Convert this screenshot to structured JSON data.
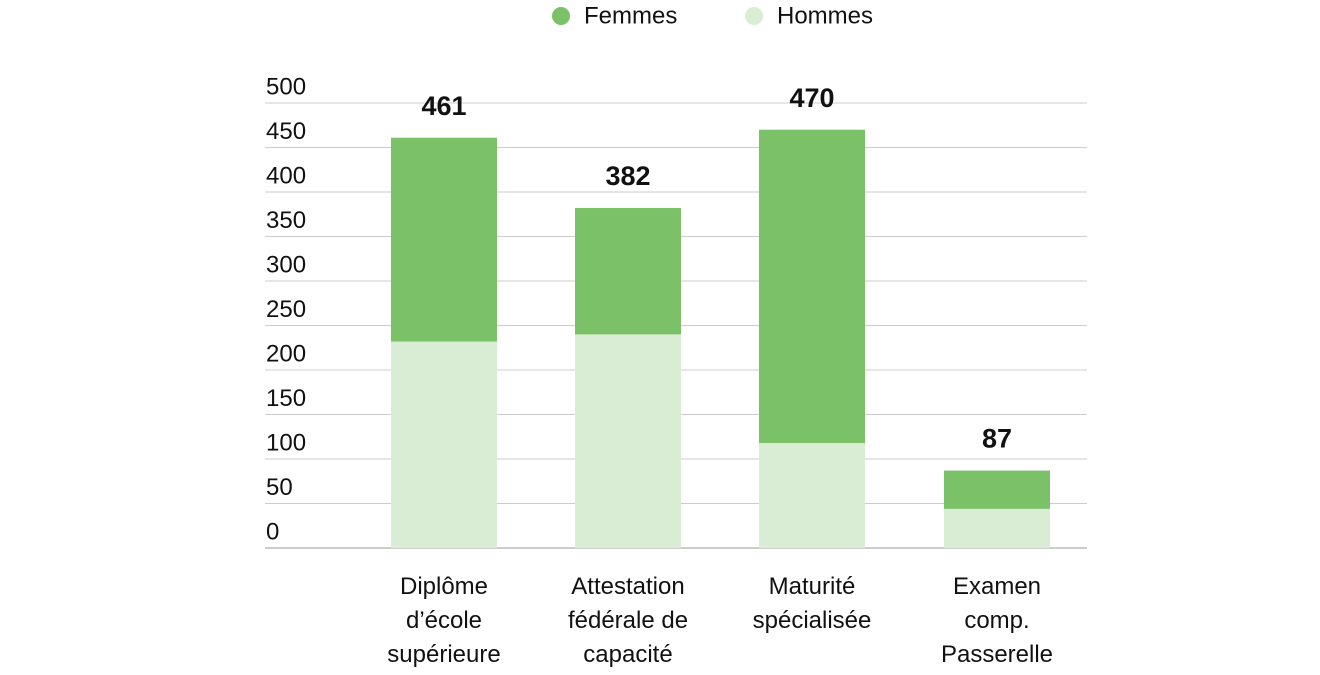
{
  "chart_data": {
    "type": "stacked_bar",
    "categories": [
      "Diplôme\nd’école\nsupérieure",
      "Attestation\nfédérale de\ncapacité",
      "Maturité\nspécialisée",
      "Examen\ncomp.\nPasserelle"
    ],
    "series": [
      {
        "name": "Hommes",
        "color": "#d9edd4",
        "values": [
          232,
          240,
          118,
          44
        ]
      },
      {
        "name": "Femmes",
        "color": "#7ac167",
        "values": [
          229,
          142,
          352,
          43
        ]
      }
    ],
    "totals": [
      461,
      382,
      470,
      87
    ],
    "ylim": [
      0,
      500
    ],
    "yticks": [
      0,
      50,
      100,
      150,
      200,
      250,
      300,
      350,
      400,
      450,
      500
    ],
    "grid": true,
    "legend": "top"
  }
}
